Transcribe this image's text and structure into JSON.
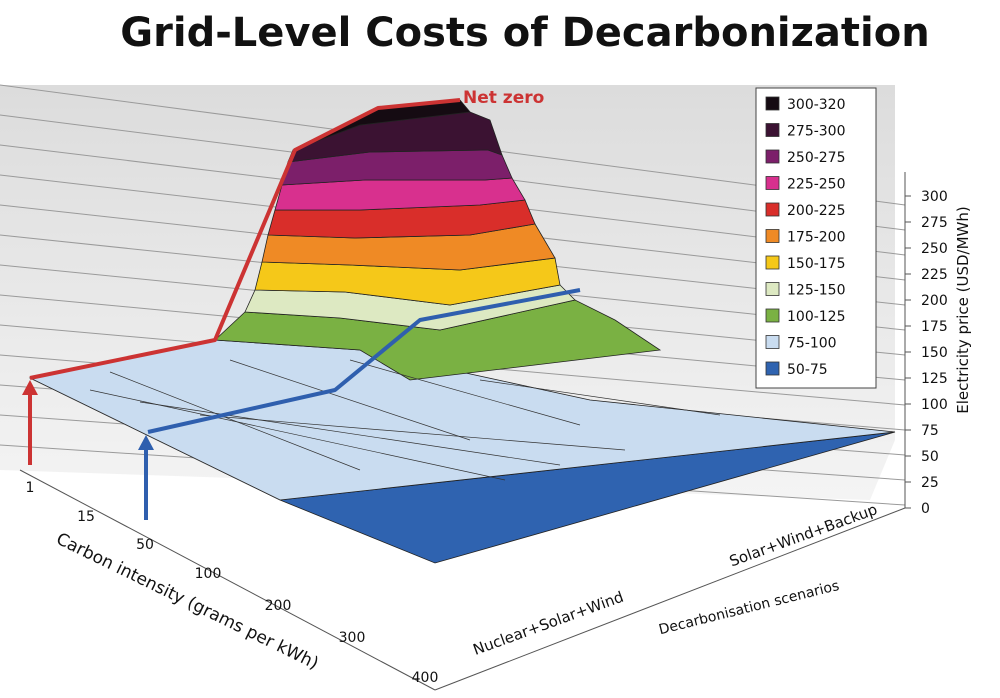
{
  "title": "Grid-Level Costs of Decarbonization",
  "chart_data": {
    "type": "surface3d",
    "zlabel": "Electricity price (USD/MWh)",
    "xlabel": "Carbon intensity (grams per kWh)",
    "ylabel": "Decarbonisation scenarios",
    "x_ticks": [
      "1",
      "15",
      "50",
      "100",
      "200",
      "300",
      "400"
    ],
    "y_ticks": [
      "Nuclear+Solar+Wind",
      "Solar+Wind+Backup"
    ],
    "z_ticks": [
      0,
      25,
      50,
      75,
      100,
      125,
      150,
      175,
      200,
      225,
      250,
      275,
      300
    ],
    "zlim": [
      0,
      320
    ],
    "legend": {
      "placement": "top-right",
      "entries": [
        {
          "label": "300-320",
          "color": "#150b12"
        },
        {
          "label": "275-300",
          "color": "#3b1232"
        },
        {
          "label": "250-275",
          "color": "#7c1f6a"
        },
        {
          "label": "225-250",
          "color": "#d8308e"
        },
        {
          "label": "200-225",
          "color": "#d92e2a"
        },
        {
          "label": "175-200",
          "color": "#ef8a25"
        },
        {
          "label": "150-175",
          "color": "#f5c819"
        },
        {
          "label": "125-150",
          "color": "#dde9c2"
        },
        {
          "label": "100-125",
          "color": "#7ab143"
        },
        {
          "label": "75-100",
          "color": "#c9dcf0"
        },
        {
          "label": "50-75",
          "color": "#2f63b0"
        }
      ]
    },
    "annotations": [
      {
        "text": "Net zero",
        "color": "#cc3333"
      }
    ]
  }
}
